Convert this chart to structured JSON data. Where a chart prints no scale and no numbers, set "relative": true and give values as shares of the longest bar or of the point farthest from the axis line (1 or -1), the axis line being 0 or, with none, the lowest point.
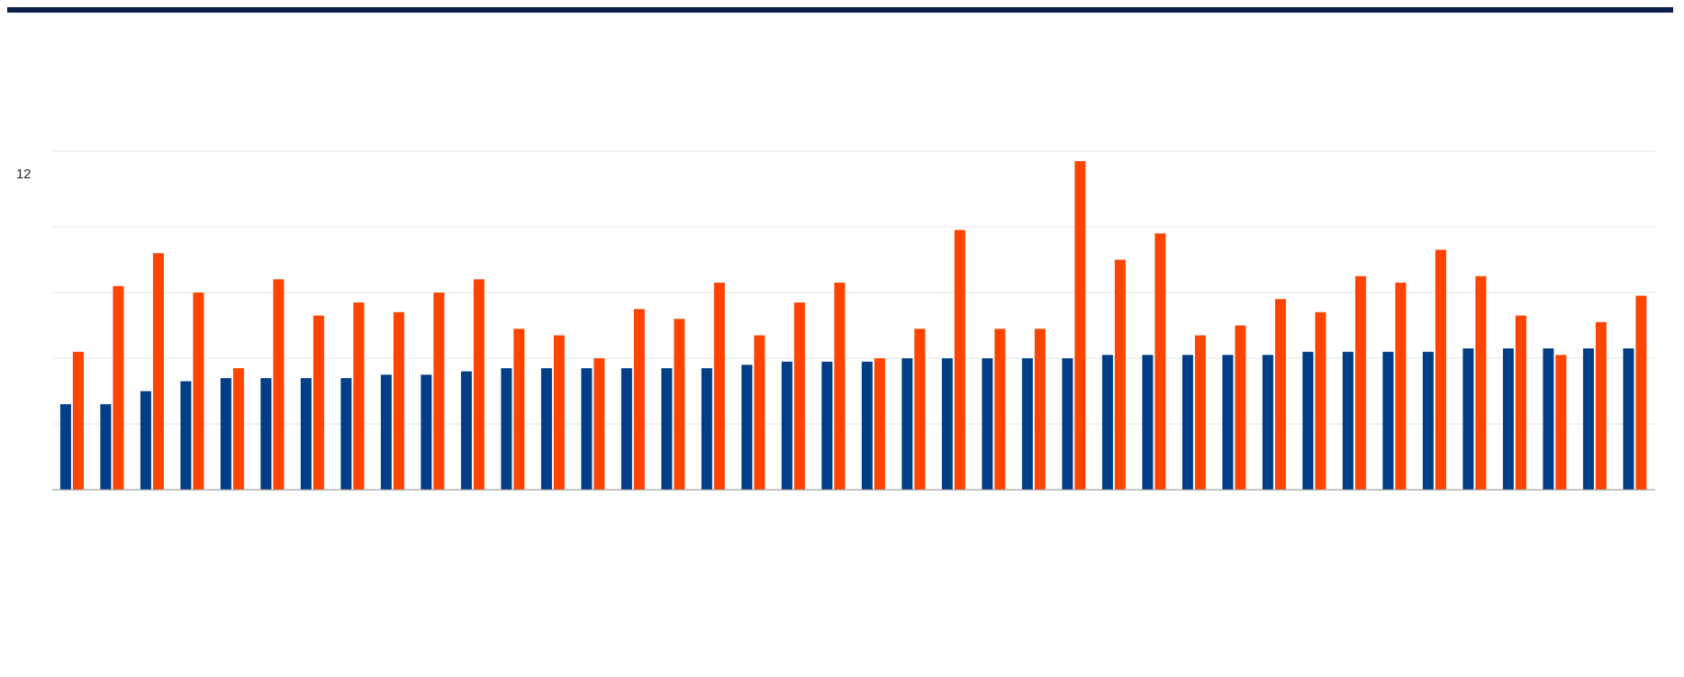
{
  "chart_data": {
    "type": "bar",
    "relative": true,
    "grid": "y",
    "legend": false,
    "annotations": [
      "12"
    ],
    "categories": [
      null,
      null,
      null,
      null,
      null,
      null,
      null,
      null,
      null,
      null,
      null,
      null,
      null,
      null,
      null,
      null,
      null,
      null,
      null,
      null,
      null,
      null,
      null,
      null,
      null,
      null,
      null,
      null,
      null,
      null,
      null,
      null,
      null,
      null,
      null,
      null,
      null,
      null,
      null,
      null
    ],
    "series": [
      {
        "color": "#003f87",
        "values": [
          0.26,
          0.26,
          0.3,
          0.33,
          0.34,
          0.34,
          0.34,
          0.34,
          0.35,
          0.35,
          0.36,
          0.37,
          0.37,
          0.37,
          0.37,
          0.37,
          0.37,
          0.38,
          0.39,
          0.39,
          0.39,
          0.4,
          0.4,
          0.4,
          0.4,
          0.4,
          0.41,
          0.41,
          0.41,
          0.41,
          0.41,
          0.42,
          0.42,
          0.42,
          0.42,
          0.43,
          0.43,
          0.43,
          0.43,
          0.43
        ]
      },
      {
        "color": "#ff4400",
        "values": [
          0.42,
          0.62,
          0.72,
          0.6,
          0.37,
          0.64,
          0.53,
          0.57,
          0.54,
          0.6,
          0.64,
          0.49,
          0.47,
          0.4,
          0.55,
          0.52,
          0.63,
          0.47,
          0.57,
          0.63,
          0.4,
          0.49,
          0.79,
          0.49,
          0.49,
          1,
          0.7,
          0.78,
          0.47,
          0.5,
          0.58,
          0.54,
          0.65,
          0.63,
          0.73,
          0.65,
          0.53,
          0.41,
          0.51,
          0.59
        ]
      }
    ]
  }
}
